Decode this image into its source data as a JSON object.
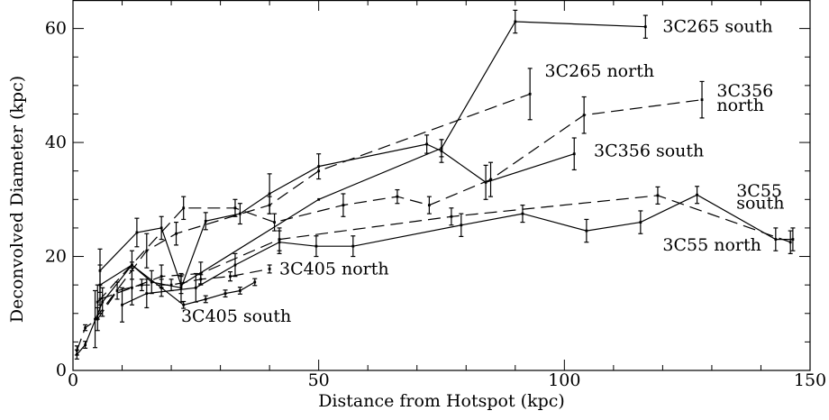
{
  "chart_data": {
    "type": "line",
    "xlabel": "Distance from Hotspot (kpc)",
    "ylabel": "Deconvolved Diameter (kpc)",
    "xlim": [
      0,
      150
    ],
    "ylim": [
      0,
      65
    ],
    "x_ticks": [
      0,
      50,
      100,
      150
    ],
    "y_ticks": [
      0,
      20,
      40,
      60
    ],
    "grid": false,
    "series": [
      {
        "name": "3C265 south",
        "style": "solid",
        "points": [
          {
            "x": 5.5,
            "y": 17.5,
            "err": 3.8
          },
          {
            "x": 13,
            "y": 24.2,
            "err": 2.5
          },
          {
            "x": 18,
            "y": 25.0,
            "err": 2.0
          },
          {
            "x": 22,
            "y": 15.0,
            "err": 1.5
          },
          {
            "x": 50,
            "y": 30.0,
            "err": 0
          },
          {
            "x": 75,
            "y": 39.0,
            "err": 1.5
          },
          {
            "x": 90,
            "y": 61.2,
            "err": 2.0
          },
          {
            "x": 116.5,
            "y": 60.3,
            "err": 2.0
          }
        ]
      },
      {
        "name": "3C265 north",
        "style": "dashed",
        "points": [
          {
            "x": 4.5,
            "y": 9.0,
            "err": 5.0
          },
          {
            "x": 15,
            "y": 21.0,
            "err": 3.0
          },
          {
            "x": 21,
            "y": 24.0,
            "err": 2.0
          },
          {
            "x": 40,
            "y": 29.0,
            "err": 1.5
          },
          {
            "x": 50,
            "y": 35.0,
            "err": 0
          },
          {
            "x": 93,
            "y": 48.5,
            "err": 4.5
          }
        ]
      },
      {
        "name": "3C356 north",
        "style": "dashed",
        "points": [
          {
            "x": 5,
            "y": 12.0,
            "err": 3.0
          },
          {
            "x": 22.5,
            "y": 28.5,
            "err": 2.0
          },
          {
            "x": 33,
            "y": 28.5,
            "err": 1.5
          },
          {
            "x": 41,
            "y": 26.0,
            "err": 1.5
          },
          {
            "x": 55,
            "y": 29.0,
            "err": 2.0
          },
          {
            "x": 66,
            "y": 30.5,
            "err": 1.2
          },
          {
            "x": 72.5,
            "y": 29.0,
            "err": 1.5
          },
          {
            "x": 85,
            "y": 33.5,
            "err": 3.0
          },
          {
            "x": 104,
            "y": 44.8,
            "err": 3.2
          },
          {
            "x": 128,
            "y": 47.5,
            "err": 3.2
          }
        ]
      },
      {
        "name": "3C356 south",
        "style": "solid",
        "points": [
          {
            "x": 5.5,
            "y": 15.0,
            "err": 3.5
          },
          {
            "x": 12,
            "y": 18.5,
            "err": 2.5
          },
          {
            "x": 16,
            "y": 15.5,
            "err": 2.0
          },
          {
            "x": 22,
            "y": 14.5,
            "err": 2.5
          },
          {
            "x": 27,
            "y": 26.2,
            "err": 1.5
          },
          {
            "x": 34,
            "y": 27.5,
            "err": 1.8
          },
          {
            "x": 40,
            "y": 31.0,
            "err": 3.5
          },
          {
            "x": 50,
            "y": 35.8,
            "err": 2.2
          },
          {
            "x": 72,
            "y": 39.7,
            "err": 1.6
          },
          {
            "x": 75,
            "y": 38.5,
            "err": 2.0
          },
          {
            "x": 84,
            "y": 33.0,
            "err": 3.0
          },
          {
            "x": 102,
            "y": 38.0,
            "err": 2.8
          }
        ]
      },
      {
        "name": "3C55 south",
        "style": "dashed",
        "points": [
          {
            "x": 5.5,
            "y": 12.5,
            "err": 2.5
          },
          {
            "x": 12,
            "y": 14.5,
            "err": 3.0
          },
          {
            "x": 18,
            "y": 16.5,
            "err": 2.0
          },
          {
            "x": 26,
            "y": 17.0,
            "err": 2.0
          },
          {
            "x": 42,
            "y": 23.0,
            "err": 2.0
          },
          {
            "x": 77,
            "y": 27.0,
            "err": 1.5
          },
          {
            "x": 119,
            "y": 30.7,
            "err": 1.5
          },
          {
            "x": 146,
            "y": 22.5,
            "err": 2.0
          }
        ]
      },
      {
        "name": "3C55 north",
        "style": "solid",
        "points": [
          {
            "x": 10,
            "y": 11.5,
            "err": 3.0
          },
          {
            "x": 15,
            "y": 13.5,
            "err": 2.5
          },
          {
            "x": 25,
            "y": 14.5,
            "err": 2.5
          },
          {
            "x": 33,
            "y": 18.5,
            "err": 2.0
          },
          {
            "x": 42,
            "y": 22.5,
            "err": 2.0
          },
          {
            "x": 49.5,
            "y": 21.8,
            "err": 1.8
          },
          {
            "x": 57,
            "y": 21.8,
            "err": 1.8
          },
          {
            "x": 79,
            "y": 25.5,
            "err": 2.0
          },
          {
            "x": 91.5,
            "y": 27.5,
            "err": 1.5
          },
          {
            "x": 104.5,
            "y": 24.5,
            "err": 2.0
          },
          {
            "x": 115.5,
            "y": 26.0,
            "err": 2.0
          },
          {
            "x": 127,
            "y": 30.8,
            "err": 1.5
          },
          {
            "x": 143,
            "y": 23.0,
            "err": 2.0
          },
          {
            "x": 146.5,
            "y": 23.0,
            "err": 2.0
          }
        ]
      },
      {
        "name": "3C405 north",
        "style": "dashed",
        "points": [
          {
            "x": 0.8,
            "y": 3.5,
            "err": 0.8
          },
          {
            "x": 2.5,
            "y": 7.5,
            "err": 0.5
          },
          {
            "x": 5,
            "y": 9.0,
            "err": 2.0
          },
          {
            "x": 9,
            "y": 14.0,
            "err": 1.5
          },
          {
            "x": 14,
            "y": 15.0,
            "err": 1.0
          },
          {
            "x": 20,
            "y": 15.0,
            "err": 1.0
          },
          {
            "x": 26,
            "y": 16.0,
            "err": 0.8
          },
          {
            "x": 32,
            "y": 16.5,
            "err": 0.8
          },
          {
            "x": 40,
            "y": 17.8,
            "err": 0.7
          }
        ]
      },
      {
        "name": "3C405 south",
        "style": "solid",
        "points": [
          {
            "x": 0.8,
            "y": 2.8,
            "err": 0.8
          },
          {
            "x": 2.5,
            "y": 4.5,
            "err": 0.6
          },
          {
            "x": 6,
            "y": 12.0,
            "err": 2.5
          },
          {
            "x": 12,
            "y": 18.5,
            "err": 0.5
          },
          {
            "x": 18,
            "y": 14.5,
            "err": 1.5
          },
          {
            "x": 22.5,
            "y": 11.5,
            "err": 0.6
          },
          {
            "x": 27,
            "y": 12.5,
            "err": 0.6
          },
          {
            "x": 31,
            "y": 13.5,
            "err": 0.6
          },
          {
            "x": 34,
            "y": 14.0,
            "err": 0.6
          },
          {
            "x": 37,
            "y": 15.5,
            "err": 0.6
          }
        ]
      }
    ],
    "labels": [
      {
        "text": "3C265 south",
        "x": 120,
        "y": 60.3,
        "anchor": "start"
      },
      {
        "text": "3C265 north",
        "x": 96,
        "y": 52.5,
        "anchor": "start"
      },
      {
        "text": "3C356",
        "x": 131,
        "y": 49.0,
        "anchor": "start"
      },
      {
        "text": "north",
        "x": 131,
        "y": 46.5,
        "anchor": "start"
      },
      {
        "text": "3C356 south",
        "x": 106,
        "y": 38.5,
        "anchor": "start"
      },
      {
        "text": "3C55",
        "x": 135,
        "y": 31.5,
        "anchor": "start"
      },
      {
        "text": "south",
        "x": 135,
        "y": 29.3,
        "anchor": "start"
      },
      {
        "text": "3C55 north",
        "x": 120,
        "y": 22.0,
        "anchor": "start"
      },
      {
        "text": "3C405 north",
        "x": 42,
        "y": 17.8,
        "anchor": "start"
      },
      {
        "text": "3C405 south",
        "x": 22,
        "y": 9.5,
        "anchor": "start"
      }
    ]
  }
}
